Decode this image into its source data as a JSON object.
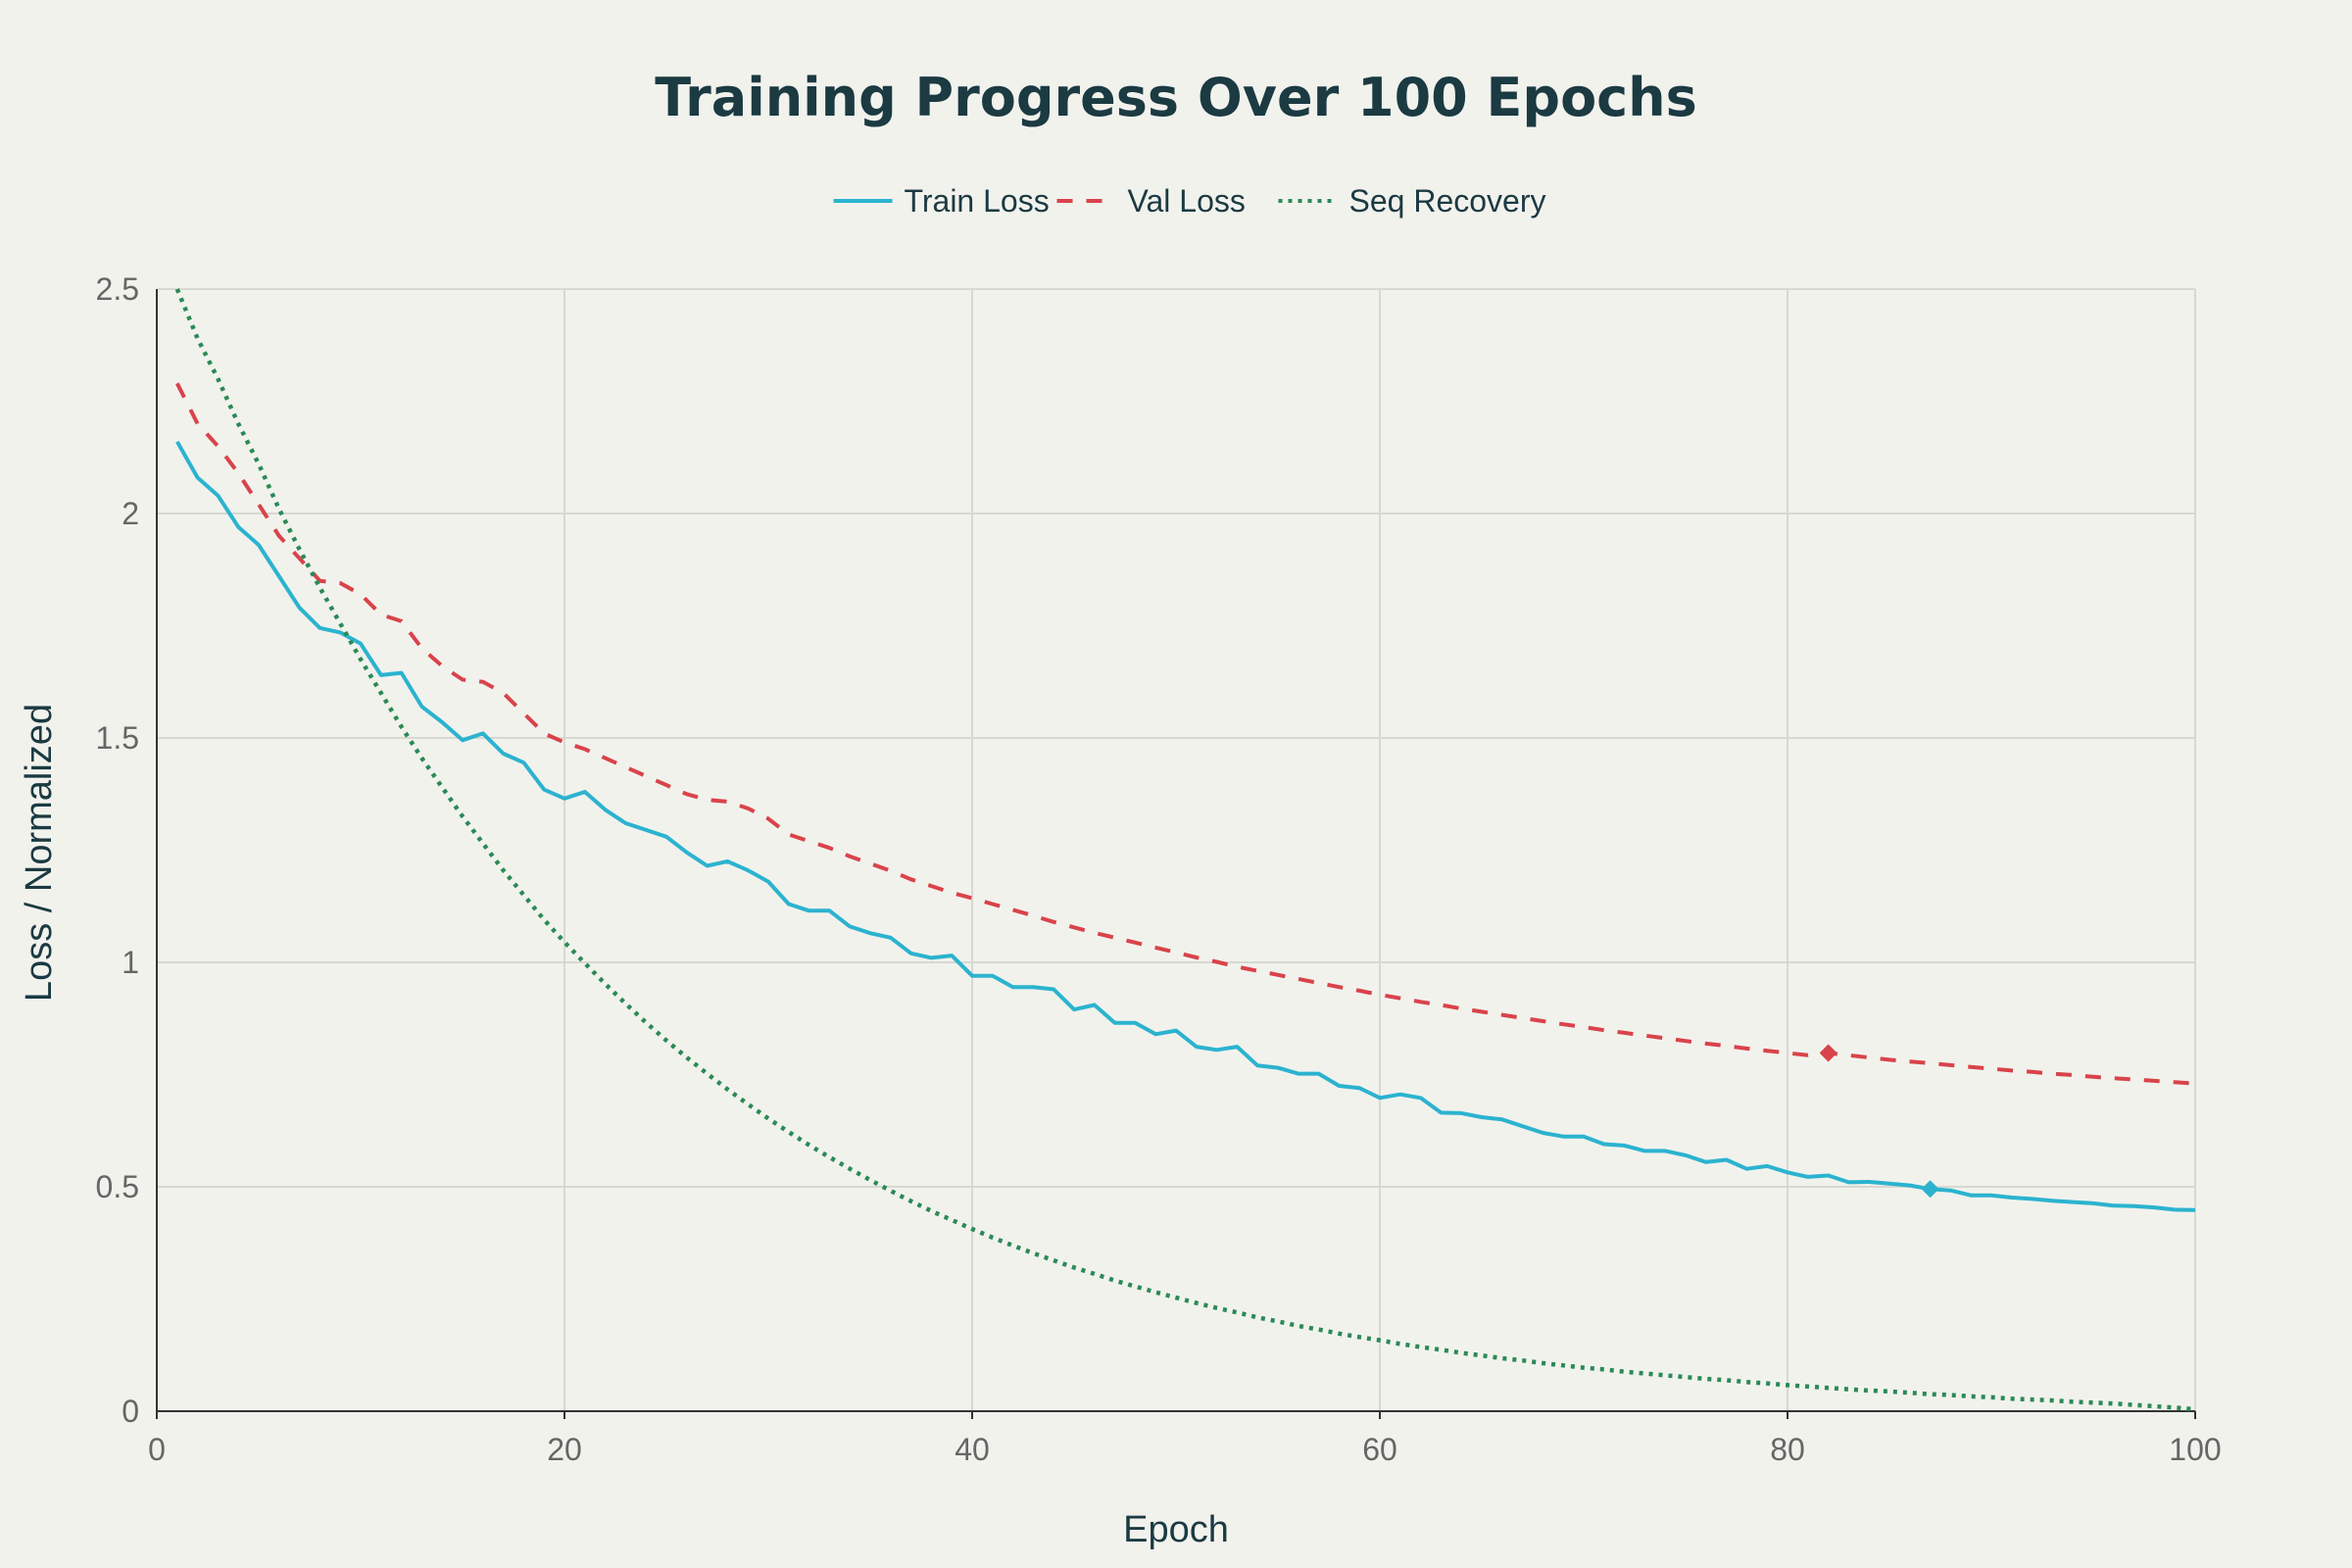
{
  "chart_data": {
    "type": "line",
    "title": "Training Progress Over 100 Epochs",
    "xlabel": "Epoch",
    "ylabel": "Loss / Normalized",
    "xlim": [
      0,
      100
    ],
    "ylim": [
      0,
      2.5
    ],
    "x_ticks": [
      "0",
      "20",
      "40",
      "60",
      "80",
      "100"
    ],
    "y_ticks": [
      "0",
      "0.5",
      "1",
      "1.5",
      "2",
      "2.5"
    ],
    "grid": true,
    "legend_position": "top-center",
    "x": [
      1,
      2,
      3,
      4,
      5,
      6,
      7,
      8,
      9,
      10,
      11,
      12,
      13,
      14,
      15,
      16,
      17,
      18,
      19,
      20,
      21,
      22,
      23,
      24,
      25,
      26,
      27,
      28,
      29,
      30,
      31,
      32,
      33,
      34,
      35,
      36,
      37,
      38,
      39,
      40,
      41,
      42,
      43,
      44,
      45,
      46,
      47,
      48,
      49,
      50,
      51,
      52,
      53,
      54,
      55,
      56,
      57,
      58,
      59,
      60,
      61,
      62,
      63,
      64,
      65,
      66,
      67,
      68,
      69,
      70,
      71,
      72,
      73,
      74,
      75,
      76,
      77,
      78,
      79,
      80,
      81,
      82,
      83,
      84,
      85,
      86,
      87,
      88,
      89,
      90,
      91,
      92,
      93,
      94,
      95,
      96,
      97,
      98,
      99,
      100
    ],
    "series": [
      {
        "name": "Train Loss",
        "color": "#2bb3cf",
        "dash": "solid",
        "marker_index": 86,
        "values": [
          2.16,
          2.08,
          2.04,
          1.97,
          1.93,
          1.86,
          1.79,
          1.745,
          1.735,
          1.71,
          1.64,
          1.645,
          1.57,
          1.535,
          1.495,
          1.51,
          1.465,
          1.445,
          1.385,
          1.365,
          1.38,
          1.34,
          1.31,
          1.295,
          1.28,
          1.245,
          1.215,
          1.225,
          1.205,
          1.18,
          1.13,
          1.115,
          1.115,
          1.08,
          1.065,
          1.055,
          1.02,
          1.01,
          1.015,
          0.97,
          0.97,
          0.945,
          0.945,
          0.94,
          0.895,
          0.905,
          0.865,
          0.865,
          0.84,
          0.848,
          0.812,
          0.805,
          0.812,
          0.77,
          0.765,
          0.752,
          0.752,
          0.725,
          0.72,
          0.698,
          0.706,
          0.698,
          0.665,
          0.664,
          0.655,
          0.65,
          0.635,
          0.62,
          0.612,
          0.612,
          0.595,
          0.592,
          0.58,
          0.58,
          0.57,
          0.555,
          0.56,
          0.54,
          0.546,
          0.532,
          0.522,
          0.525,
          0.51,
          0.511,
          0.507,
          0.503,
          0.495,
          0.492,
          0.481,
          0.481,
          0.476,
          0.473,
          0.469,
          0.466,
          0.463,
          0.458,
          0.457,
          0.454,
          0.449,
          0.448
        ]
      },
      {
        "name": "Val Loss",
        "color": "#d9434a",
        "dash": "dashed",
        "marker_index": 81,
        "values": [
          2.29,
          2.2,
          2.15,
          2.09,
          2.02,
          1.95,
          1.9,
          1.85,
          1.845,
          1.82,
          1.775,
          1.76,
          1.7,
          1.66,
          1.63,
          1.625,
          1.6,
          1.555,
          1.51,
          1.49,
          1.475,
          1.455,
          1.435,
          1.415,
          1.395,
          1.375,
          1.362,
          1.358,
          1.343,
          1.32,
          1.285,
          1.27,
          1.255,
          1.236,
          1.22,
          1.204,
          1.185,
          1.17,
          1.155,
          1.143,
          1.13,
          1.117,
          1.104,
          1.09,
          1.078,
          1.066,
          1.055,
          1.044,
          1.033,
          1.022,
          1.011,
          1.001,
          0.99,
          0.981,
          0.972,
          0.963,
          0.954,
          0.945,
          0.937,
          0.928,
          0.92,
          0.912,
          0.905,
          0.897,
          0.89,
          0.883,
          0.876,
          0.869,
          0.862,
          0.856,
          0.849,
          0.843,
          0.837,
          0.831,
          0.825,
          0.819,
          0.814,
          0.808,
          0.803,
          0.798,
          0.793,
          0.798,
          0.793,
          0.788,
          0.783,
          0.779,
          0.775,
          0.771,
          0.767,
          0.763,
          0.759,
          0.756,
          0.752,
          0.749,
          0.745,
          0.742,
          0.739,
          0.736,
          0.733,
          0.73
        ]
      },
      {
        "name": "Seq Recovery",
        "color": "#2a8a55",
        "dash": "dotted",
        "values": [
          2.5,
          2.39,
          2.3,
          2.2,
          2.11,
          2.01,
          1.92,
          1.835,
          1.755,
          1.675,
          1.6,
          1.525,
          1.455,
          1.39,
          1.325,
          1.265,
          1.205,
          1.15,
          1.095,
          1.045,
          0.998,
          0.952,
          0.908,
          0.866,
          0.826,
          0.788,
          0.752,
          0.717,
          0.684,
          0.652,
          0.622,
          0.593,
          0.566,
          0.54,
          0.515,
          0.491,
          0.468,
          0.446,
          0.426,
          0.406,
          0.387,
          0.369,
          0.352,
          0.336,
          0.32,
          0.306,
          0.291,
          0.278,
          0.265,
          0.253,
          0.241,
          0.23,
          0.22,
          0.209,
          0.2,
          0.19,
          0.182,
          0.173,
          0.165,
          0.158,
          0.15,
          0.143,
          0.137,
          0.13,
          0.124,
          0.118,
          0.113,
          0.107,
          0.102,
          0.097,
          0.093,
          0.088,
          0.084,
          0.08,
          0.076,
          0.072,
          0.069,
          0.065,
          0.062,
          0.058,
          0.055,
          0.052,
          0.049,
          0.046,
          0.044,
          0.041,
          0.038,
          0.036,
          0.033,
          0.031,
          0.028,
          0.026,
          0.024,
          0.021,
          0.019,
          0.017,
          0.014,
          0.011,
          0.008,
          0.004
        ]
      }
    ]
  }
}
